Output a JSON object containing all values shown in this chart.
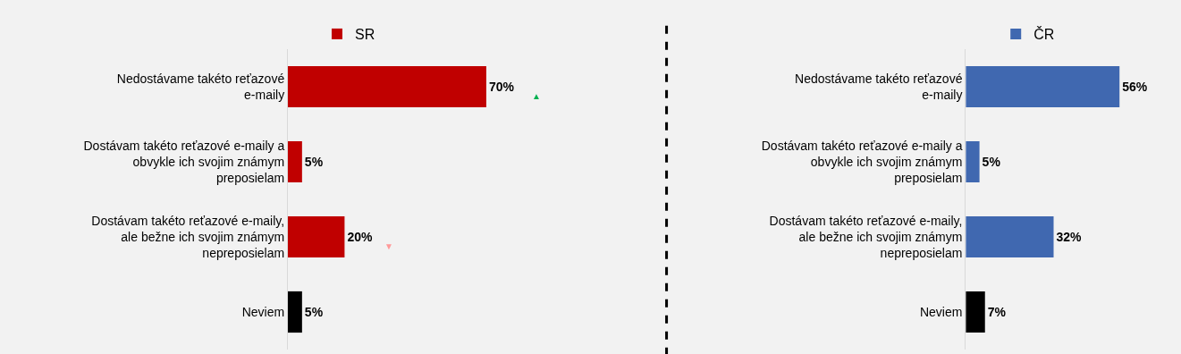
{
  "chart_data": [
    {
      "type": "bar",
      "orientation": "horizontal",
      "categories": [
        "Nedostávame takéto reťazové e-maily",
        "Dostávam takéto reťazové e-maily a obvykle ich svojim známym preposielam",
        "Dostávam takéto reťazové e-maily, ale bežne ich svojim známym nepreposielam",
        "Neviem"
      ],
      "series": [
        {
          "name": "SR",
          "colors": [
            "#c00000",
            "#c00000",
            "#c00000",
            "#000000"
          ],
          "values": [
            70,
            5,
            20,
            5
          ],
          "value_labels": [
            "70%",
            "5%",
            "20%",
            "5%"
          ]
        }
      ],
      "annotations": [
        "▲",
        "▼"
      ],
      "legend": "top",
      "tick_labels": "y",
      "grid": false
    },
    {
      "type": "bar",
      "orientation": "horizontal",
      "categories": [
        "Nedostávame takéto reťazové e-maily",
        "Dostávam takéto reťazové e-maily a obvykle ich svojim známym preposielam",
        "Dostávam takéto reťazové e-maily, ale bežne ich svojim známym nepreposielam",
        "Neviem"
      ],
      "series": [
        {
          "name": "ČR",
          "colors": [
            "#4068b0",
            "#4068b0",
            "#4068b0",
            "#000000"
          ],
          "values": [
            56,
            5,
            32,
            7
          ],
          "value_labels": [
            "56%",
            "5%",
            "32%",
            "7%"
          ]
        }
      ],
      "legend": "top",
      "tick_labels": "y",
      "grid": false
    }
  ]
}
